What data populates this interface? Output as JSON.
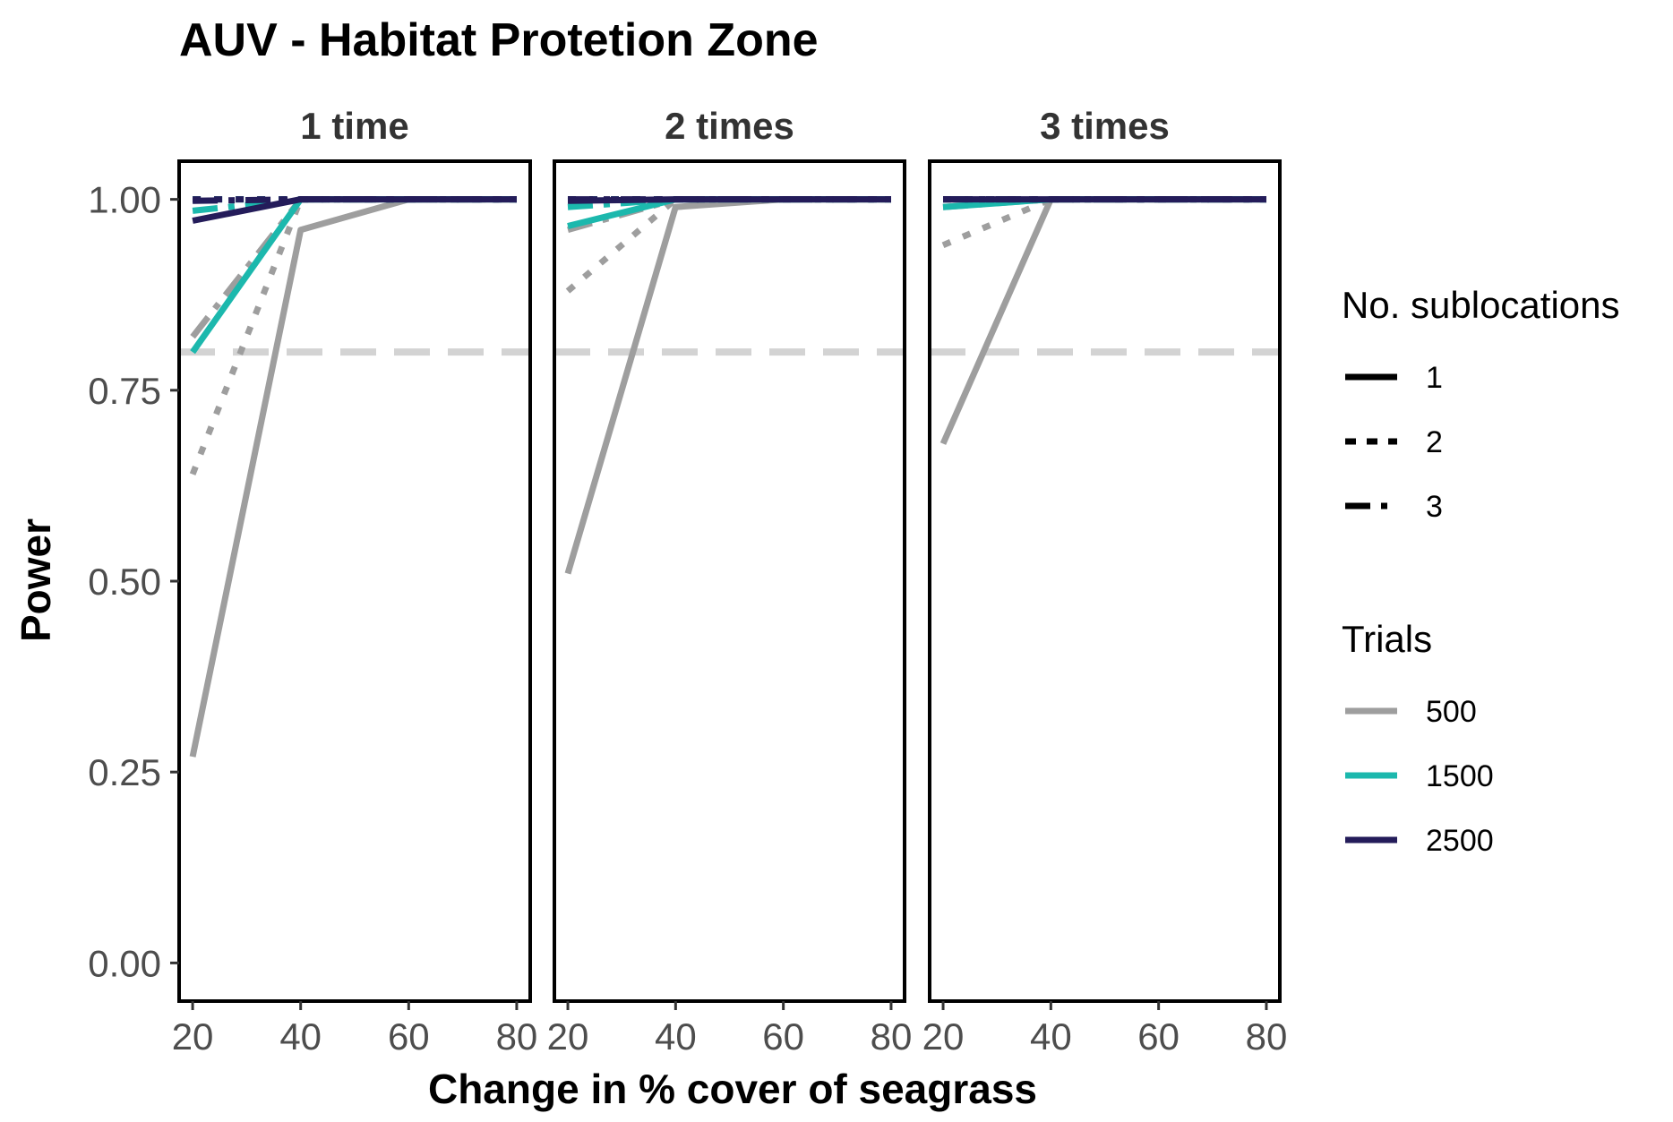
{
  "chart_data": {
    "type": "line",
    "title": "AUV - Habitat Protetion Zone",
    "xlabel": "Change in % cover of seagrass",
    "ylabel": "Power",
    "x_ticks": [
      20,
      40,
      60,
      80
    ],
    "y_ticks": [
      "0.00",
      "0.25",
      "0.50",
      "0.75",
      "1.00"
    ],
    "xlim": [
      17.5,
      82.5
    ],
    "ylim": [
      -0.05,
      1.05
    ],
    "reference_line": {
      "y": 0.8,
      "color": "#d3d3d3"
    },
    "legend": {
      "placement": "right",
      "linetype_title": "No. sublocations",
      "linetype_entries": [
        {
          "label": "1",
          "dash": "solid"
        },
        {
          "label": "2",
          "dash": "dotted"
        },
        {
          "label": "3",
          "dash": "dashed"
        }
      ],
      "color_title": "Trials",
      "color_entries": [
        {
          "label": "500",
          "color": "#9e9e9e"
        },
        {
          "label": "1500",
          "color": "#1cb8ad"
        },
        {
          "label": "2500",
          "color": "#241c5a"
        }
      ]
    },
    "facets": [
      {
        "label": "1 time",
        "series": [
          {
            "trials": "500",
            "sublocations": "1",
            "x": [
              20,
              40,
              60,
              80
            ],
            "y": [
              0.27,
              0.96,
              1.0,
              1.0
            ]
          },
          {
            "trials": "500",
            "sublocations": "2",
            "x": [
              20,
              40,
              60,
              80
            ],
            "y": [
              0.64,
              1.0,
              1.0,
              1.0
            ]
          },
          {
            "trials": "500",
            "sublocations": "3",
            "x": [
              20,
              40,
              60,
              80
            ],
            "y": [
              0.82,
              1.0,
              1.0,
              1.0
            ]
          },
          {
            "trials": "1500",
            "sublocations": "1",
            "x": [
              20,
              40,
              60,
              80
            ],
            "y": [
              0.8,
              1.0,
              1.0,
              1.0
            ]
          },
          {
            "trials": "1500",
            "sublocations": "2",
            "x": [
              20,
              40,
              60,
              80
            ],
            "y": [
              1.0,
              1.0,
              1.0,
              1.0
            ]
          },
          {
            "trials": "1500",
            "sublocations": "3",
            "x": [
              20,
              40,
              60,
              80
            ],
            "y": [
              0.985,
              1.0,
              1.0,
              1.0
            ]
          },
          {
            "trials": "2500",
            "sublocations": "1",
            "x": [
              20,
              40,
              60,
              80
            ],
            "y": [
              0.972,
              1.0,
              1.0,
              1.0
            ]
          },
          {
            "trials": "2500",
            "sublocations": "2",
            "x": [
              20,
              40,
              60,
              80
            ],
            "y": [
              1.0,
              1.0,
              1.0,
              1.0
            ]
          },
          {
            "trials": "2500",
            "sublocations": "3",
            "x": [
              20,
              40,
              60,
              80
            ],
            "y": [
              0.998,
              1.0,
              1.0,
              1.0
            ]
          }
        ]
      },
      {
        "label": "2 times",
        "series": [
          {
            "trials": "500",
            "sublocations": "1",
            "x": [
              20,
              40,
              60,
              80
            ],
            "y": [
              0.51,
              0.99,
              1.0,
              1.0
            ]
          },
          {
            "trials": "500",
            "sublocations": "2",
            "x": [
              20,
              40,
              60,
              80
            ],
            "y": [
              0.88,
              1.0,
              1.0,
              1.0
            ]
          },
          {
            "trials": "500",
            "sublocations": "3",
            "x": [
              20,
              40,
              60,
              80
            ],
            "y": [
              0.96,
              1.0,
              1.0,
              1.0
            ]
          },
          {
            "trials": "1500",
            "sublocations": "1",
            "x": [
              20,
              40,
              60,
              80
            ],
            "y": [
              0.965,
              1.0,
              1.0,
              1.0
            ]
          },
          {
            "trials": "1500",
            "sublocations": "2",
            "x": [
              20,
              40,
              60,
              80
            ],
            "y": [
              1.0,
              1.0,
              1.0,
              1.0
            ]
          },
          {
            "trials": "1500",
            "sublocations": "3",
            "x": [
              20,
              40,
              60,
              80
            ],
            "y": [
              0.99,
              1.0,
              1.0,
              1.0
            ]
          },
          {
            "trials": "2500",
            "sublocations": "1",
            "x": [
              20,
              40,
              60,
              80
            ],
            "y": [
              0.998,
              1.0,
              1.0,
              1.0
            ]
          },
          {
            "trials": "2500",
            "sublocations": "2",
            "x": [
              20,
              40,
              60,
              80
            ],
            "y": [
              1.0,
              1.0,
              1.0,
              1.0
            ]
          },
          {
            "trials": "2500",
            "sublocations": "3",
            "x": [
              20,
              40,
              60,
              80
            ],
            "y": [
              1.0,
              1.0,
              1.0,
              1.0
            ]
          }
        ]
      },
      {
        "label": "3 times",
        "series": [
          {
            "trials": "500",
            "sublocations": "1",
            "x": [
              20,
              40,
              60,
              80
            ],
            "y": [
              0.68,
              1.0,
              1.0,
              1.0
            ]
          },
          {
            "trials": "500",
            "sublocations": "2",
            "x": [
              20,
              40,
              60,
              80
            ],
            "y": [
              0.94,
              1.0,
              1.0,
              1.0
            ]
          },
          {
            "trials": "500",
            "sublocations": "3",
            "x": [
              20,
              40,
              60,
              80
            ],
            "y": [
              0.99,
              1.0,
              1.0,
              1.0
            ]
          },
          {
            "trials": "1500",
            "sublocations": "1",
            "x": [
              20,
              40,
              60,
              80
            ],
            "y": [
              0.99,
              1.0,
              1.0,
              1.0
            ]
          },
          {
            "trials": "1500",
            "sublocations": "2",
            "x": [
              20,
              40,
              60,
              80
            ],
            "y": [
              1.0,
              1.0,
              1.0,
              1.0
            ]
          },
          {
            "trials": "1500",
            "sublocations": "3",
            "x": [
              20,
              40,
              60,
              80
            ],
            "y": [
              1.0,
              1.0,
              1.0,
              1.0
            ]
          },
          {
            "trials": "2500",
            "sublocations": "1",
            "x": [
              20,
              40,
              60,
              80
            ],
            "y": [
              1.0,
              1.0,
              1.0,
              1.0
            ]
          },
          {
            "trials": "2500",
            "sublocations": "2",
            "x": [
              20,
              40,
              60,
              80
            ],
            "y": [
              1.0,
              1.0,
              1.0,
              1.0
            ]
          },
          {
            "trials": "2500",
            "sublocations": "3",
            "x": [
              20,
              40,
              60,
              80
            ],
            "y": [
              1.0,
              1.0,
              1.0,
              1.0
            ]
          }
        ]
      }
    ]
  }
}
